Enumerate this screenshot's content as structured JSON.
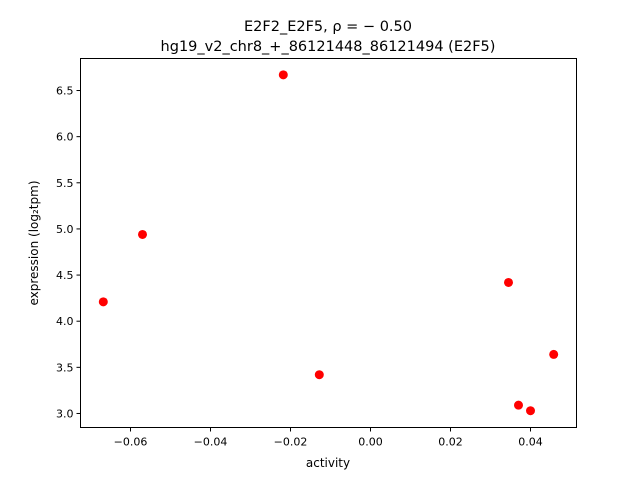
{
  "chart_data": {
    "type": "scatter",
    "title_line1": "E2F2_E2F5, ρ = − 0.50",
    "title_line2": "hg19_v2_chr8_+_86121448_86121494 (E2F5)",
    "xlabel": "activity",
    "ylabel": "expression (log₂tpm)",
    "xlim": [
      -0.0725,
      0.0515
    ],
    "ylim": [
      2.848,
      6.847
    ],
    "xticks": [
      -0.06,
      -0.04,
      -0.02,
      0.0,
      0.02,
      0.04
    ],
    "xtick_labels": [
      "−0.06",
      "−0.04",
      "−0.02",
      "0.00",
      "0.02",
      "0.04"
    ],
    "yticks": [
      3.0,
      3.5,
      4.0,
      4.5,
      5.0,
      5.5,
      6.0,
      6.5
    ],
    "ytick_labels": [
      "3.0",
      "3.5",
      "4.0",
      "4.5",
      "5.0",
      "5.5",
      "6.0",
      "6.5"
    ],
    "grid": false,
    "marker_color": "#ff0000",
    "points": [
      {
        "x": -0.0668,
        "y": 4.21
      },
      {
        "x": -0.057,
        "y": 4.94
      },
      {
        "x": -0.0218,
        "y": 6.67
      },
      {
        "x": -0.0128,
        "y": 3.42
      },
      {
        "x": 0.0345,
        "y": 4.42
      },
      {
        "x": 0.037,
        "y": 3.09
      },
      {
        "x": 0.04,
        "y": 3.03
      },
      {
        "x": 0.0458,
        "y": 3.64
      }
    ]
  }
}
